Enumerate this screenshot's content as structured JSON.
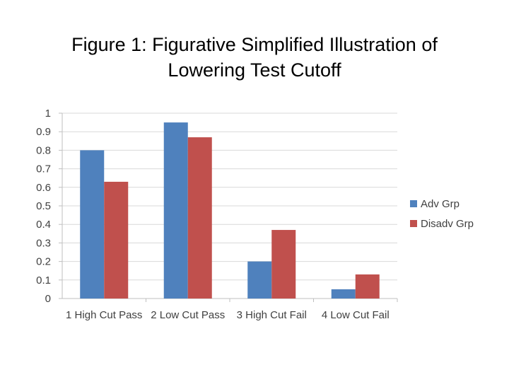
{
  "chart_data": {
    "type": "bar",
    "title_line1": "Figure 1: Figurative Simplified Illustration of",
    "title_line2": "Lowering Test Cutoff",
    "categories": [
      "1 High Cut Pass",
      "2 Low Cut Pass",
      "3 High Cut Fail",
      "4 Low Cut Fail"
    ],
    "series": [
      {
        "name": "Adv Grp",
        "values": [
          0.8,
          0.95,
          0.2,
          0.05
        ],
        "color": "#4F81BD"
      },
      {
        "name": "Disadv Grp",
        "values": [
          0.63,
          0.87,
          0.37,
          0.13
        ],
        "color": "#C0504D"
      }
    ],
    "yticks": [
      "0",
      "0.1",
      "0.2",
      "0.3",
      "0.4",
      "0.5",
      "0.6",
      "0.7",
      "0.8",
      "0.9",
      "1"
    ],
    "ylim": [
      0,
      1
    ],
    "grid": true,
    "legend_position": "right",
    "xlabel": "",
    "ylabel": ""
  }
}
